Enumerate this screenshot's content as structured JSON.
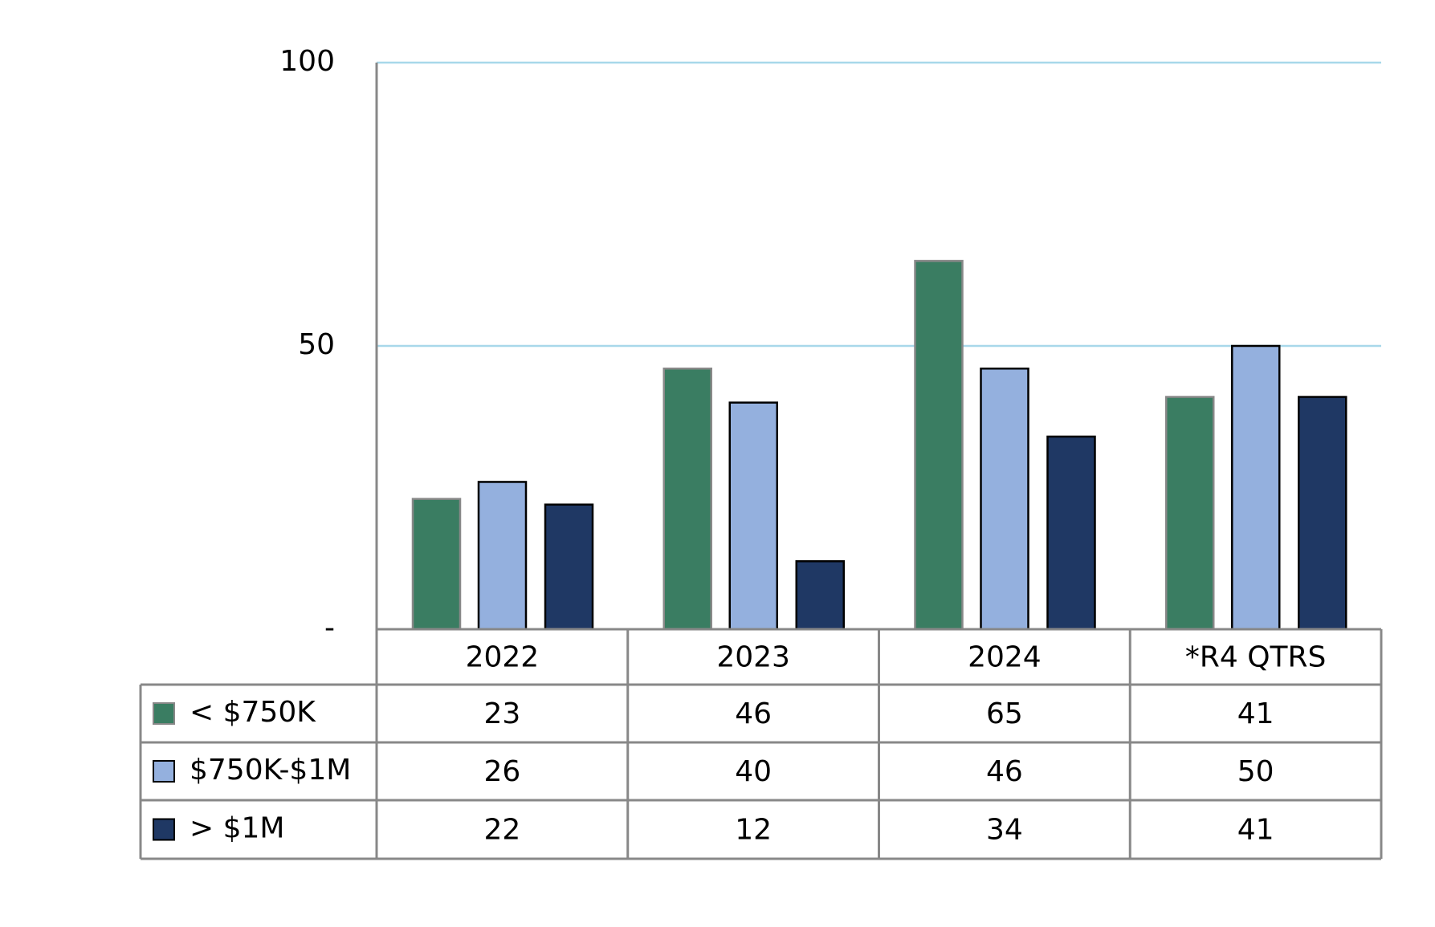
{
  "chart_data": {
    "type": "bar",
    "categories": [
      "2022",
      "2023",
      "2024",
      "*R4 QTRS"
    ],
    "series": [
      {
        "name": "< $750K",
        "color": "#3a7d62",
        "values": [
          23,
          46,
          65,
          41
        ]
      },
      {
        "name": "$750K-$1M",
        "color": "#94b0de",
        "values": [
          26,
          40,
          46,
          50
        ]
      },
      {
        "name": "> $1M",
        "color": "#1f3864",
        "values": [
          22,
          12,
          34,
          41
        ]
      }
    ],
    "ylim": [
      0,
      100
    ],
    "yticks": [
      {
        "value": 0,
        "label": "-"
      },
      50,
      100
    ],
    "grid": true,
    "data_table": true
  }
}
